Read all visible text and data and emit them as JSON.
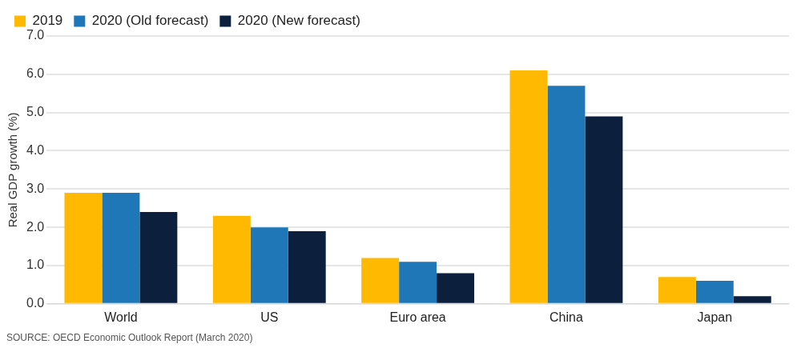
{
  "chart_data": {
    "type": "bar",
    "ylabel": "Real GDP growth (%)",
    "categories": [
      "World",
      "US",
      "Euro area",
      "China",
      "Japan"
    ],
    "series": [
      {
        "name": "2019",
        "color": "#ffb900",
        "values": [
          2.9,
          2.3,
          1.2,
          6.1,
          0.7
        ]
      },
      {
        "name": "2020 (Old forecast)",
        "color": "#1f77b8",
        "values": [
          2.9,
          2.0,
          1.1,
          5.7,
          0.6
        ]
      },
      {
        "name": "2020 (New forecast)",
        "color": "#0c1f3d",
        "values": [
          2.4,
          1.9,
          0.8,
          4.9,
          0.2
        ]
      }
    ],
    "ylim": [
      0,
      7
    ],
    "yticks": [
      {
        "value": 0,
        "label": "0.0"
      },
      {
        "value": 1,
        "label": "1.0"
      },
      {
        "value": 2,
        "label": "2.0"
      },
      {
        "value": 3,
        "label": "3.0"
      },
      {
        "value": 4,
        "label": "4.0"
      },
      {
        "value": 5,
        "label": "5.0"
      },
      {
        "value": 6,
        "label": "6.0"
      },
      {
        "value": 7,
        "label": "7.0"
      }
    ],
    "grid": "y",
    "legend": "top left",
    "annotations": [
      "SOURCE: OECD Economic Outlook Report (March 2020)"
    ]
  }
}
